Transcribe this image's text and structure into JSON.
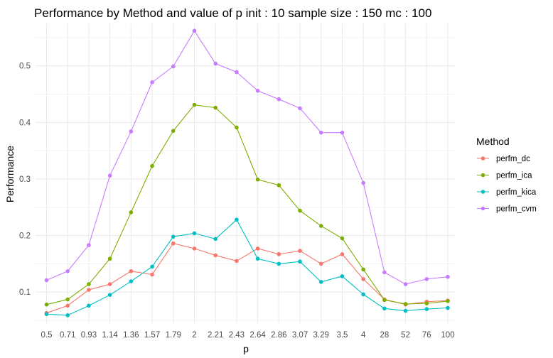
{
  "chart_data": {
    "type": "line",
    "title": "Performance by Method and value of p init :  10 sample size : 150  mc :  100",
    "xlabel": "p",
    "ylabel": "Performance",
    "categories": [
      "0.5",
      "0.71",
      "0.93",
      "1.14",
      "1.36",
      "1.57",
      "1.79",
      "2",
      "2.21",
      "2.43",
      "2.64",
      "2.86",
      "3.07",
      "3.29",
      "3.5",
      "4",
      "28",
      "52",
      "76",
      "100"
    ],
    "ylim": [
      0.045,
      0.575
    ],
    "yticks": [
      "0.1",
      "0.2",
      "0.3",
      "0.4",
      "0.5"
    ],
    "grid": true,
    "legend": {
      "title": "Method",
      "placement": "right"
    },
    "series": [
      {
        "name": "perfm_dc",
        "color": "#F8766D",
        "values": [
          0.063,
          0.076,
          0.104,
          0.114,
          0.137,
          0.131,
          0.186,
          0.177,
          0.165,
          0.155,
          0.177,
          0.167,
          0.173,
          0.15,
          0.167,
          0.123,
          0.087,
          0.078,
          0.083,
          0.085
        ]
      },
      {
        "name": "perfm_ica",
        "color": "#7CAE00",
        "values": [
          0.078,
          0.087,
          0.114,
          0.159,
          0.241,
          0.323,
          0.385,
          0.431,
          0.426,
          0.391,
          0.299,
          0.289,
          0.244,
          0.217,
          0.195,
          0.14,
          0.086,
          0.079,
          0.08,
          0.084
        ]
      },
      {
        "name": "perfm_kica",
        "color": "#00BFC4",
        "values": [
          0.061,
          0.059,
          0.076,
          0.095,
          0.119,
          0.145,
          0.198,
          0.204,
          0.194,
          0.228,
          0.159,
          0.15,
          0.154,
          0.118,
          0.128,
          0.096,
          0.071,
          0.067,
          0.07,
          0.072
        ]
      },
      {
        "name": "perfm_cvm",
        "color": "#C77CFF",
        "values": [
          0.121,
          0.137,
          0.183,
          0.306,
          0.384,
          0.471,
          0.499,
          0.562,
          0.504,
          0.489,
          0.456,
          0.441,
          0.425,
          0.382,
          0.382,
          0.293,
          0.135,
          0.114,
          0.123,
          0.127
        ]
      }
    ]
  }
}
